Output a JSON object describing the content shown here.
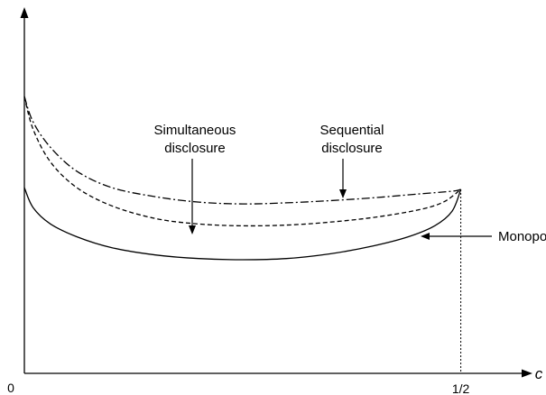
{
  "chart_data": {
    "type": "line",
    "title": "",
    "xlabel": "c",
    "ylabel": "",
    "origin_label": "0",
    "x_ticks": [
      {
        "value": 0.5,
        "label": "1/2"
      }
    ],
    "xlim": [
      0,
      0.58
    ],
    "ylim": [
      0,
      1
    ],
    "grid": false,
    "series": [
      {
        "name": "Sequential disclosure",
        "style": "dash-dot",
        "x": [
          0,
          0.01,
          0.03,
          0.06,
          0.1,
          0.15,
          0.2,
          0.25,
          0.3,
          0.35,
          0.4,
          0.45,
          0.49,
          0.5
        ],
        "y": [
          0.76,
          0.69,
          0.62,
          0.555,
          0.51,
          0.485,
          0.47,
          0.465,
          0.468,
          0.474,
          0.482,
          0.492,
          0.5,
          0.505
        ]
      },
      {
        "name": "Simultaneous disclosure",
        "style": "dashed",
        "x": [
          0,
          0.01,
          0.03,
          0.06,
          0.1,
          0.15,
          0.2,
          0.25,
          0.3,
          0.35,
          0.4,
          0.45,
          0.48,
          0.5
        ],
        "y": [
          0.76,
          0.67,
          0.58,
          0.51,
          0.46,
          0.425,
          0.41,
          0.405,
          0.407,
          0.415,
          0.428,
          0.448,
          0.47,
          0.505
        ]
      },
      {
        "name": "Monopoly",
        "style": "solid",
        "x": [
          0,
          0.01,
          0.03,
          0.06,
          0.1,
          0.15,
          0.2,
          0.25,
          0.3,
          0.35,
          0.4,
          0.44,
          0.47,
          0.49,
          0.5
        ],
        "y": [
          0.51,
          0.455,
          0.41,
          0.375,
          0.345,
          0.325,
          0.315,
          0.312,
          0.315,
          0.328,
          0.35,
          0.375,
          0.405,
          0.445,
          0.505
        ]
      }
    ],
    "annotations": [
      {
        "lines": [
          "Simultaneous",
          "disclosure"
        ],
        "target_series": "Simultaneous disclosure"
      },
      {
        "lines": [
          "Sequential",
          "disclosure"
        ],
        "target_series": "Sequential disclosure"
      },
      {
        "lines": [
          "Monopoly"
        ],
        "target_series": "Monopoly"
      }
    ]
  }
}
